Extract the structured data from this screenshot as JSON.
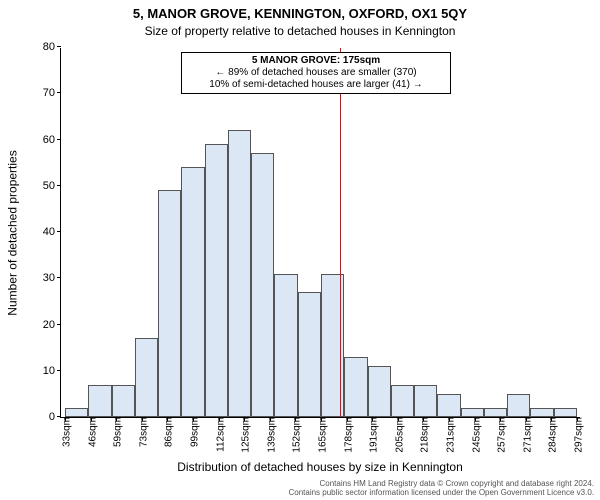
{
  "title_main": "5, MANOR GROVE, KENNINGTON, OXFORD, OX1 5QY",
  "title_sub": "Size of property relative to detached houses in Kennington",
  "y_axis": {
    "label": "Number of detached properties",
    "min": 0,
    "max": 80,
    "tick_step": 10,
    "ticks": [
      0,
      10,
      20,
      30,
      40,
      50,
      60,
      70,
      80
    ]
  },
  "x_axis": {
    "label": "Distribution of detached houses by size in Kennington",
    "tick_unit": "sqm",
    "tick_start": 33,
    "tick_step": 13.254545,
    "tick_labels": [
      33,
      46,
      59,
      73,
      86,
      99,
      112,
      125,
      139,
      152,
      165,
      178,
      191,
      205,
      218,
      231,
      245,
      257,
      271,
      284,
      297
    ]
  },
  "bars": {
    "fill_color": "#dbe7f5",
    "border_color": "#555555",
    "values": [
      2,
      7,
      7,
      17,
      49,
      54,
      59,
      62,
      57,
      31,
      27,
      31,
      13,
      11,
      7,
      7,
      5,
      2,
      2,
      5,
      2,
      2
    ]
  },
  "marker": {
    "value_sqm": 175,
    "color": "#ff0000",
    "annotation": {
      "line1": "5 MANOR GROVE: 175sqm",
      "line2": "← 89% of detached houses are smaller (370)",
      "line3": "10% of semi-detached houses are larger (41) →"
    }
  },
  "plot_style": {
    "background_color": "#ffffff",
    "axis_color": "#000000",
    "font_family": "Arial",
    "title_fontsize": 13,
    "subtitle_fontsize": 12,
    "axis_label_fontsize": 12,
    "tick_fontsize": 10
  },
  "footer": {
    "line1": "Contains HM Land Registry data © Crown copyright and database right 2024.",
    "line2": "Contains public sector information licensed under the Open Government Licence v3.0."
  }
}
